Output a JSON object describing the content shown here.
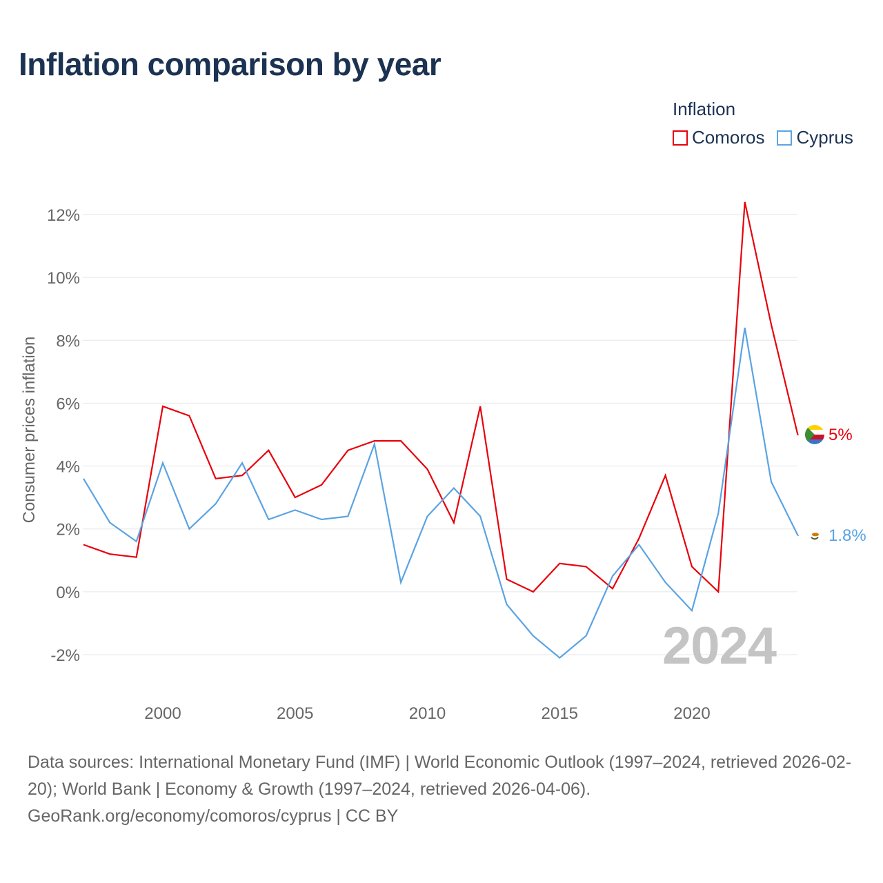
{
  "chart_data": {
    "type": "line",
    "title": "Inflation comparison by year",
    "legend_title": "Inflation",
    "legend_position": "top-right",
    "ylabel": "Consumer prices inflation",
    "xlabel": "",
    "ylim": [
      -3,
      12.8
    ],
    "xlim": [
      1997,
      2024
    ],
    "yticks": [
      -2,
      0,
      2,
      4,
      6,
      8,
      10,
      12
    ],
    "ytick_labels": [
      "-2%",
      "0%",
      "2%",
      "4%",
      "6%",
      "8%",
      "10%",
      "12%"
    ],
    "xticks": [
      2000,
      2005,
      2010,
      2015,
      2020
    ],
    "xtick_labels": [
      "2000",
      "2005",
      "2010",
      "2015",
      "2020"
    ],
    "grid": true,
    "current_year": "2024",
    "x": [
      1997,
      1998,
      1999,
      2000,
      2001,
      2002,
      2003,
      2004,
      2005,
      2006,
      2007,
      2008,
      2009,
      2010,
      2011,
      2012,
      2013,
      2014,
      2015,
      2016,
      2017,
      2018,
      2019,
      2020,
      2021,
      2022,
      2023,
      2024
    ],
    "series": [
      {
        "name": "Comoros",
        "color": "#e8000b",
        "end_label": "5%",
        "values": [
          1.5,
          1.2,
          1.1,
          5.9,
          5.6,
          3.6,
          3.7,
          4.5,
          3.0,
          3.4,
          4.5,
          4.8,
          4.8,
          3.9,
          2.2,
          5.9,
          0.4,
          0.0,
          0.9,
          0.8,
          0.1,
          1.7,
          3.7,
          0.8,
          0.0,
          12.4,
          8.5,
          5.0
        ]
      },
      {
        "name": "Cyprus",
        "color": "#5aa3e3",
        "end_label": "1.8%",
        "values": [
          3.6,
          2.2,
          1.6,
          4.1,
          2.0,
          2.8,
          4.1,
          2.3,
          2.6,
          2.3,
          2.4,
          4.7,
          0.3,
          2.4,
          3.3,
          2.4,
          -0.4,
          -1.4,
          -2.1,
          -1.4,
          0.5,
          1.5,
          0.3,
          -0.6,
          2.5,
          8.4,
          3.5,
          1.8
        ]
      }
    ]
  },
  "footer": {
    "sources": "Data sources: International Monetary Fund (IMF) | World Economic Outlook (1997–2024, retrieved 2026-02-20); World Bank | Economy & Growth (1997–2024, retrieved 2026-04-06).",
    "credit": "GeoRank.org/economy/comoros/cyprus | CC BY"
  }
}
